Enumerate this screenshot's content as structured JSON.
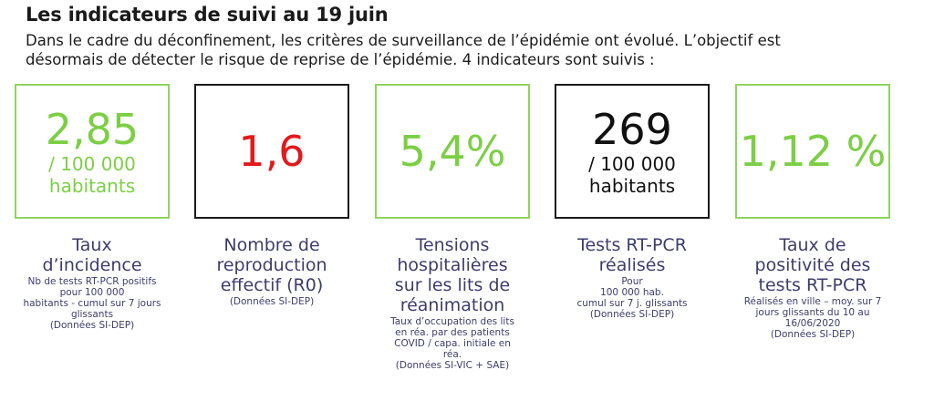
{
  "header": {
    "title": "Les indicateurs de suivi au 19 juin",
    "intro_line1": "Dans le cadre du déconfinement, les critères de surveillance de l’épidémie ont évolué. L’objectif est",
    "intro_line2": "désormais de détecter le risque de reprise de l’épidémie. 4 indicateurs sont suivis  :"
  },
  "indicators": [
    {
      "value": "2,85",
      "unit1": "/ 100 000",
      "unit2": "habitants",
      "value_color": "#7ccf45",
      "border_color": "#8fd45f",
      "label1": "Taux",
      "label2": "d’incidence",
      "note": [
        "Nb de tests RT-PCR positifs",
        "pour 100 000",
        "habitants - cumul sur 7 jours",
        "glissants",
        "(Données SI-DEP)"
      ]
    },
    {
      "value": "1,6",
      "value_color": "#e3191c",
      "border_color": "#1a1a1a",
      "label1": "Nombre de",
      "label2": "reproduction",
      "label3": "effectif (R0)",
      "note": [
        "(Données SI-DEP)"
      ]
    },
    {
      "value": "5,4%",
      "value_color": "#7ccf45",
      "border_color": "#8fd45f",
      "label1": "Tensions",
      "label2": "hospitalières",
      "label3": "sur les lits de",
      "label4": "réanimation",
      "note": [
        "Taux d’occupation des lits",
        "en réa. par des patients",
        "COVID / capa. initiale en",
        "réa.",
        "(Données SI-VIC + SAE)"
      ]
    },
    {
      "value": "269",
      "unit1": "/ 100 000",
      "unit2": "habitants",
      "value_color": "#111111",
      "border_color": "#1a1a1a",
      "label1": "Tests RT-PCR",
      "label2": "réalisés",
      "note": [
        "Pour",
        "100 000 hab.",
        "cumul sur 7 j. glissants",
        "(Données SI-DEP)"
      ]
    },
    {
      "value": "1,12 %",
      "value_color": "#7ccf45",
      "border_color": "#8fd45f",
      "label1": "Taux de",
      "label2": "positivité des",
      "label3": "tests RT-PCR",
      "note": [
        "Réalisés en ville – moy. sur 7",
        "jours glissants du 10 au",
        "16/06/2020",
        "(Données SI-DEP)"
      ]
    }
  ]
}
